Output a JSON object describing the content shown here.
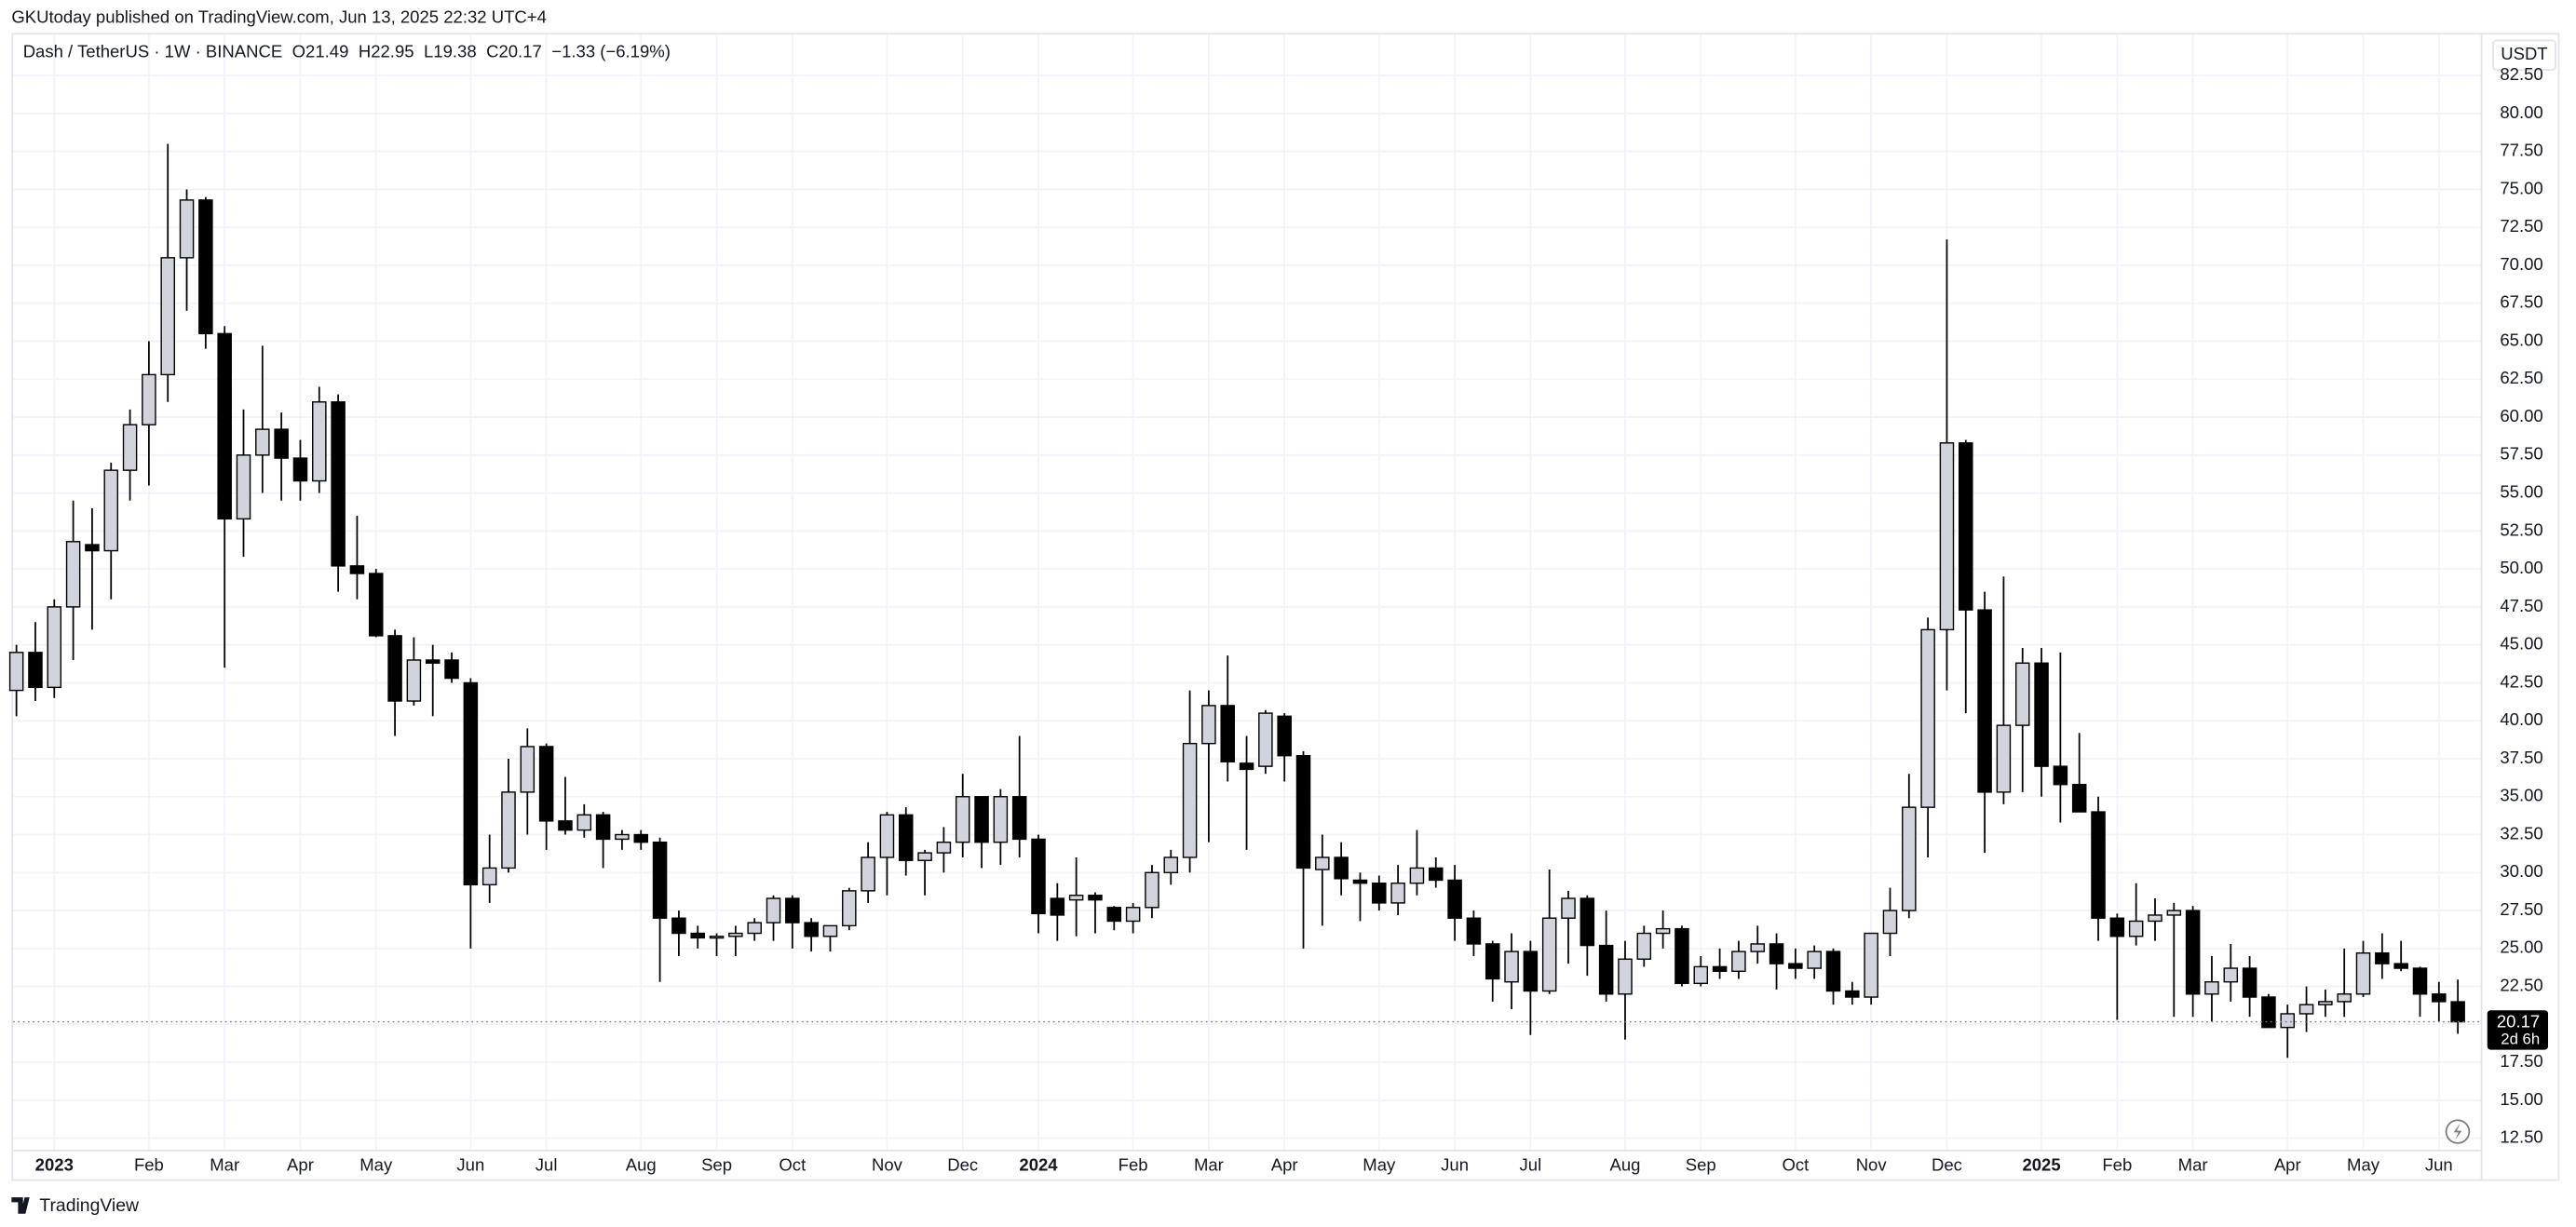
{
  "header": {
    "published": "GKUtoday published on TradingView.com, Jun 13, 2025 22:32 UTC+4"
  },
  "legend": {
    "symbol": "Dash / TetherUS · 1W · BINANCE",
    "open": "O21.49",
    "high": "H22.95",
    "low": "L19.38",
    "close": "C20.17",
    "change": "−1.33 (−6.19%)"
  },
  "currency": "USDT",
  "countdown": "2d 6h",
  "footer": {
    "brand": "TradingView"
  },
  "chart_data": {
    "type": "candlestick",
    "categories": [
      null,
      null,
      "2023",
      null,
      null,
      null,
      null,
      "Feb",
      null,
      null,
      null,
      "Mar",
      null,
      null,
      null,
      "Apr",
      null,
      null,
      null,
      "May",
      null,
      null,
      null,
      null,
      "Jun",
      null,
      null,
      null,
      "Jul",
      null,
      null,
      null,
      null,
      "Aug",
      null,
      null,
      null,
      "Sep",
      null,
      null,
      null,
      "Oct",
      null,
      null,
      null,
      null,
      "Nov",
      null,
      null,
      null,
      "Dec",
      null,
      null,
      null,
      "2024",
      null,
      null,
      null,
      null,
      "Feb",
      null,
      null,
      null,
      "Mar",
      null,
      null,
      null,
      "Apr",
      null,
      null,
      null,
      null,
      "May",
      null,
      null,
      null,
      "Jun",
      null,
      null,
      null,
      "Jul",
      null,
      null,
      null,
      null,
      "Aug",
      null,
      null,
      null,
      "Sep",
      null,
      null,
      null,
      null,
      "Oct",
      null,
      null,
      null,
      "Nov",
      null,
      null,
      null,
      "Dec",
      null,
      null,
      null,
      null,
      "2025",
      null,
      null,
      null,
      "Feb",
      null,
      null,
      null,
      "Mar",
      null,
      null,
      null,
      null,
      "Apr",
      null,
      null,
      null,
      "May",
      null,
      null,
      null,
      "Jun",
      null
    ],
    "year_labels": [
      "2023",
      "2024",
      "2025"
    ],
    "open": [
      42,
      44.5,
      42.2,
      47.5,
      51.6,
      51.2,
      56.5,
      59.5,
      62.8,
      70.5,
      74.3,
      65.5,
      53.3,
      57.5,
      59.2,
      57.3,
      55.8,
      61,
      50.2,
      49.7,
      45.6,
      41.3,
      44,
      44,
      42.5,
      29.2,
      30.3,
      35.3,
      38.3,
      33.4,
      32.8,
      33.8,
      32.2,
      32.5,
      32,
      27,
      26,
      25.7,
      25.8,
      26,
      26.7,
      28.3,
      26.7,
      25.8,
      26.5,
      28.8,
      31,
      33.8,
      30.8,
      31.3,
      32,
      35,
      32,
      35,
      32.2,
      28.3,
      28.2,
      28.5,
      27.7,
      26.8,
      27.7,
      30,
      31,
      38.5,
      41,
      37.2,
      37,
      40.3,
      37.7,
      30.2,
      31,
      29.5,
      29.3,
      28,
      29.3,
      30.3,
      29.5,
      27,
      25.3,
      22.8,
      24.8,
      22.2,
      27,
      28.3,
      25.2,
      22,
      24.3,
      26,
      26.3,
      22.7,
      23.8,
      23.5,
      24.8,
      25.3,
      24,
      23.7,
      24.8,
      22.2,
      21.8,
      26,
      27.5,
      34.3,
      46,
      58.3,
      47.3,
      35.3,
      39.7,
      43.8,
      37,
      35.8,
      34,
      27,
      25.8,
      26.8,
      27.2,
      27.5,
      22,
      22.8,
      23.7,
      21.8,
      19.8,
      20.7,
      21.3,
      21.5,
      22,
      24.7,
      24,
      23.7,
      22,
      21.49
    ],
    "high": [
      45,
      46.5,
      48,
      54.5,
      54,
      57,
      60.5,
      65,
      78,
      75,
      74.5,
      66,
      60.5,
      64.7,
      60.3,
      58.5,
      62,
      61.5,
      53.5,
      50,
      46,
      45.5,
      45,
      44.5,
      42.8,
      32.5,
      37.5,
      39.5,
      38.5,
      36.3,
      34.5,
      34,
      32.8,
      32.8,
      32.3,
      27.5,
      26.5,
      26,
      26.5,
      27,
      28.5,
      28.5,
      27,
      26.5,
      29,
      32,
      34,
      34.3,
      31.5,
      33,
      36.5,
      35,
      35.5,
      39,
      32.5,
      29.3,
      31,
      28.7,
      27.8,
      28,
      30.5,
      31.5,
      42,
      42,
      44.3,
      39,
      40.7,
      40.5,
      38,
      32.5,
      32,
      30,
      29.8,
      30.5,
      32.8,
      31,
      30.5,
      27.5,
      25.5,
      26,
      25.5,
      30.2,
      28.8,
      28.5,
      27.5,
      25.5,
      26.5,
      27.5,
      26.5,
      24.5,
      25,
      25.5,
      26.5,
      26,
      25,
      25.2,
      25,
      22.8,
      26,
      29,
      36.5,
      46.8,
      71.7,
      58.5,
      48.5,
      49.5,
      44.8,
      44.8,
      44.5,
      39.2,
      35,
      27.3,
      29.3,
      28.3,
      28,
      27.8,
      24.5,
      25.3,
      24.5,
      22,
      21.3,
      22.5,
      22.3,
      25,
      25.5,
      26,
      25.5,
      23.8,
      22.8,
      22.95
    ],
    "low": [
      40.3,
      41.3,
      41.5,
      44,
      46,
      48,
      54.5,
      55.5,
      61,
      67,
      64.5,
      43.5,
      50.8,
      55,
      54.5,
      54.5,
      55,
      48.5,
      48,
      45.5,
      39,
      41,
      40.3,
      42.5,
      25,
      28,
      30,
      32.5,
      31.5,
      32.5,
      32.3,
      30.3,
      31.5,
      31.5,
      22.8,
      24.5,
      25,
      24.5,
      24.5,
      25.5,
      25.5,
      25,
      24.8,
      24.8,
      26.2,
      28,
      28.5,
      29.8,
      28.5,
      30,
      31,
      30.3,
      30.5,
      31,
      26,
      25.5,
      25.8,
      26,
      26.2,
      26,
      27,
      29.2,
      30,
      32,
      36,
      31.5,
      36.5,
      36,
      25,
      26.5,
      28.5,
      26.8,
      27.5,
      27.2,
      28.5,
      29,
      25.5,
      24.5,
      21.5,
      21,
      19.3,
      22,
      24,
      23.2,
      21.5,
      19,
      23.8,
      25,
      22.5,
      22.5,
      23,
      23,
      24,
      22.3,
      23,
      23,
      21.3,
      21.3,
      21.3,
      24.5,
      27,
      31,
      42,
      40.5,
      31.3,
      34.5,
      35.3,
      35,
      33.3,
      34,
      25.5,
      20.3,
      25.2,
      25.5,
      20.5,
      20.5,
      20.2,
      21.5,
      20.5,
      19.8,
      17.8,
      19.5,
      20.5,
      20.5,
      21.8,
      23,
      23.5,
      20.5,
      20.2,
      19.38
    ],
    "close": [
      44.5,
      42.2,
      47.5,
      51.8,
      51.2,
      56.5,
      59.5,
      62.8,
      70.5,
      74.3,
      65.5,
      53.3,
      57.5,
      59.2,
      57.3,
      55.8,
      61,
      50.2,
      49.7,
      45.6,
      41.3,
      44,
      43.8,
      42.8,
      29.2,
      30.3,
      35.3,
      38.3,
      33.4,
      32.8,
      33.8,
      32.2,
      32.5,
      32,
      27,
      26,
      25.7,
      25.8,
      26,
      26.7,
      28.3,
      26.7,
      25.8,
      26.5,
      28.8,
      31,
      33.8,
      30.8,
      31.3,
      32,
      35,
      32,
      35,
      32.2,
      27.3,
      27.2,
      28.5,
      28.2,
      26.8,
      27.7,
      30,
      31,
      38.5,
      41,
      37.3,
      36.8,
      40.5,
      37.7,
      30.3,
      31,
      29.6,
      29.3,
      28,
      29.3,
      30.3,
      29.5,
      27,
      25.3,
      23,
      24.8,
      22.2,
      27,
      28.3,
      25.2,
      22,
      24.3,
      26,
      26.3,
      22.7,
      23.8,
      23.5,
      24.8,
      25.3,
      24,
      23.7,
      24.8,
      22.2,
      21.8,
      26,
      27.5,
      34.3,
      46,
      58.3,
      47.3,
      35.3,
      39.7,
      43.8,
      37,
      35.8,
      34,
      27,
      25.8,
      26.8,
      27.2,
      27.5,
      22,
      22.8,
      23.7,
      21.8,
      19.8,
      20.7,
      21.3,
      21.5,
      22,
      24.7,
      24,
      23.7,
      22,
      21.5,
      20.17
    ],
    "up_color": "#d1d4dc",
    "down_color": "#000000",
    "wick_color": "#000000",
    "ylim": [
      9.8,
      82.6
    ],
    "yticks": [
      {
        "value": 12.5,
        "label": "12.50"
      },
      {
        "value": 15,
        "label": "15.00"
      },
      {
        "value": 17.5,
        "label": "17.50"
      },
      {
        "value": 20,
        "label": "20.00"
      },
      {
        "value": 22.5,
        "label": "22.50"
      },
      {
        "value": 25,
        "label": "25.00"
      },
      {
        "value": 27.5,
        "label": "27.50"
      },
      {
        "value": 30,
        "label": "30.00"
      },
      {
        "value": 32.5,
        "label": "32.50"
      },
      {
        "value": 35,
        "label": "35.00"
      },
      {
        "value": 37.5,
        "label": "37.50"
      },
      {
        "value": 40,
        "label": "40.00"
      },
      {
        "value": 42.5,
        "label": "42.50"
      },
      {
        "value": 45,
        "label": "45.00"
      },
      {
        "value": 47.5,
        "label": "47.50"
      },
      {
        "value": 50,
        "label": "50.00"
      },
      {
        "value": 52.5,
        "label": "52.50"
      },
      {
        "value": 55,
        "label": "55.00"
      },
      {
        "value": 57.5,
        "label": "57.50"
      },
      {
        "value": 60,
        "label": "60.00"
      },
      {
        "value": 62.5,
        "label": "62.50"
      },
      {
        "value": 65,
        "label": "65.00"
      },
      {
        "value": 67.5,
        "label": "67.50"
      },
      {
        "value": 70,
        "label": "70.00"
      },
      {
        "value": 72.5,
        "label": "72.50"
      },
      {
        "value": 75,
        "label": "75.00"
      },
      {
        "value": 77.5,
        "label": "77.50"
      },
      {
        "value": 80,
        "label": "80.00"
      },
      {
        "value": 82.5,
        "label": "82.50"
      }
    ],
    "grid": true,
    "last_price_line": true
  }
}
